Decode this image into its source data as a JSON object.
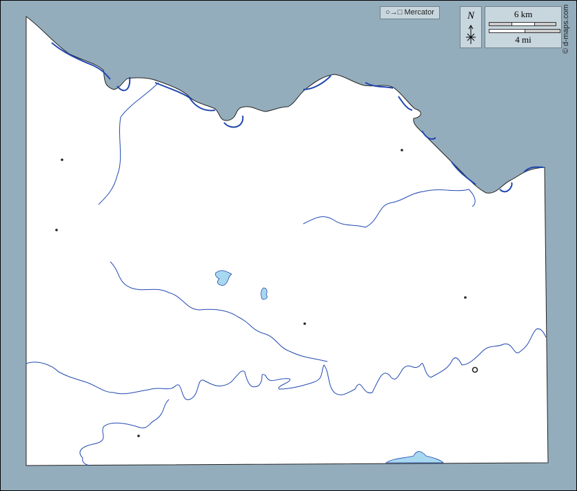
{
  "map": {
    "projection_label": "○→□ Mercator",
    "north_label": "N",
    "scale_km": "6 km",
    "scale_mi": "4 mi",
    "credit": "© d-maps.com",
    "colors": {
      "sea": "#94adbc",
      "land": "#ffffff",
      "river": "#1f47b0",
      "lake": "#a8d8f0",
      "coast": "#000000"
    }
  }
}
